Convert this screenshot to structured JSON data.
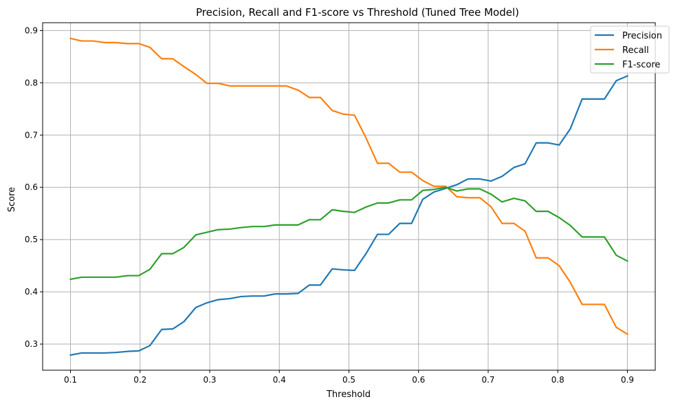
{
  "chart_data": {
    "type": "line",
    "title": "Precision, Recall and F1-score vs Threshold (Tuned Tree Model)",
    "xlabel": "Threshold",
    "ylabel": "Score",
    "xlim": [
      0.06,
      0.94
    ],
    "ylim": [
      0.25,
      0.915
    ],
    "xticks": [
      "0.1",
      "0.2",
      "0.3",
      "0.4",
      "0.5",
      "0.6",
      "0.7",
      "0.8",
      "0.9"
    ],
    "yticks": [
      "0.3",
      "0.4",
      "0.5",
      "0.6",
      "0.7",
      "0.8",
      "0.9"
    ],
    "grid": true,
    "legend_position": "top-right",
    "x": [
      0.1,
      0.116,
      0.133,
      0.149,
      0.165,
      0.182,
      0.198,
      0.214,
      0.231,
      0.247,
      0.263,
      0.28,
      0.296,
      0.312,
      0.329,
      0.345,
      0.361,
      0.378,
      0.394,
      0.41,
      0.427,
      0.443,
      0.459,
      0.476,
      0.492,
      0.508,
      0.524,
      0.541,
      0.557,
      0.573,
      0.59,
      0.606,
      0.622,
      0.639,
      0.655,
      0.671,
      0.688,
      0.704,
      0.72,
      0.737,
      0.753,
      0.769,
      0.786,
      0.802,
      0.818,
      0.835,
      0.851,
      0.867,
      0.884,
      0.9
    ],
    "series": [
      {
        "name": "Precision",
        "color": "#1f77b4",
        "values": [
          0.279,
          0.283,
          0.283,
          0.283,
          0.284,
          0.286,
          0.287,
          0.297,
          0.328,
          0.329,
          0.343,
          0.37,
          0.379,
          0.385,
          0.387,
          0.391,
          0.392,
          0.392,
          0.396,
          0.396,
          0.397,
          0.413,
          0.413,
          0.444,
          0.442,
          0.441,
          0.472,
          0.51,
          0.51,
          0.531,
          0.531,
          0.577,
          0.591,
          0.598,
          0.605,
          0.616,
          0.616,
          0.612,
          0.621,
          0.638,
          0.645,
          0.685,
          0.685,
          0.681,
          0.712,
          0.769,
          0.769,
          0.769,
          0.804,
          0.813
        ]
      },
      {
        "name": "Recall",
        "color": "#ff7f0e",
        "values": [
          0.885,
          0.88,
          0.88,
          0.877,
          0.877,
          0.875,
          0.875,
          0.868,
          0.846,
          0.846,
          0.831,
          0.816,
          0.799,
          0.799,
          0.794,
          0.794,
          0.794,
          0.794,
          0.794,
          0.794,
          0.786,
          0.772,
          0.772,
          0.747,
          0.74,
          0.738,
          0.696,
          0.646,
          0.646,
          0.629,
          0.629,
          0.613,
          0.602,
          0.602,
          0.582,
          0.58,
          0.58,
          0.563,
          0.531,
          0.531,
          0.516,
          0.465,
          0.465,
          0.45,
          0.418,
          0.376,
          0.376,
          0.376,
          0.332,
          0.319
        ]
      },
      {
        "name": "F1-score",
        "color": "#2ca02c",
        "values": [
          0.424,
          0.428,
          0.428,
          0.428,
          0.428,
          0.431,
          0.431,
          0.443,
          0.473,
          0.473,
          0.485,
          0.509,
          0.514,
          0.519,
          0.52,
          0.523,
          0.525,
          0.525,
          0.528,
          0.528,
          0.528,
          0.538,
          0.538,
          0.557,
          0.554,
          0.552,
          0.562,
          0.57,
          0.57,
          0.576,
          0.576,
          0.594,
          0.596,
          0.6,
          0.593,
          0.597,
          0.597,
          0.587,
          0.572,
          0.579,
          0.574,
          0.554,
          0.554,
          0.542,
          0.527,
          0.505,
          0.505,
          0.505,
          0.47,
          0.459
        ]
      }
    ]
  }
}
